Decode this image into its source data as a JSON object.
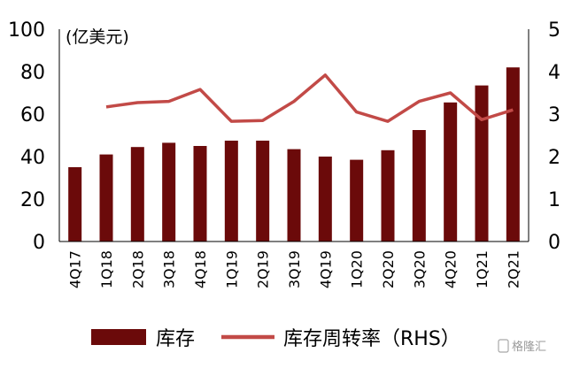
{
  "chart_data": {
    "type": "bar",
    "unit_label": "(亿美元)",
    "categories": [
      "4Q17",
      "1Q18",
      "2Q18",
      "3Q18",
      "4Q18",
      "1Q19",
      "2Q19",
      "3Q19",
      "4Q19",
      "1Q20",
      "2Q20",
      "3Q20",
      "4Q20",
      "1Q21",
      "2Q21"
    ],
    "ylim": [
      0,
      100
    ],
    "yticks": [
      0,
      20,
      40,
      60,
      80,
      100
    ],
    "y2lim": [
      0,
      5
    ],
    "y2ticks": [
      0,
      1,
      2,
      3,
      4,
      5
    ],
    "grid": false,
    "legend_position": "bottom",
    "series": [
      {
        "name": "库存",
        "type": "bar",
        "axis": "left",
        "color": "#6b0a0a",
        "values": [
          35,
          41,
          44.5,
          46.5,
          45,
          47.5,
          47.5,
          43.5,
          40,
          38.5,
          43,
          52.5,
          65.5,
          73.5,
          82
        ]
      },
      {
        "name": "库存周转率（RHS）",
        "type": "line",
        "axis": "right",
        "color": "#c24a47",
        "values": [
          null,
          3.17,
          3.27,
          3.3,
          3.58,
          2.83,
          2.85,
          3.3,
          3.92,
          3.05,
          2.83,
          3.3,
          3.5,
          2.87,
          3.1
        ]
      }
    ]
  },
  "watermark": {
    "text": "格隆汇"
  }
}
